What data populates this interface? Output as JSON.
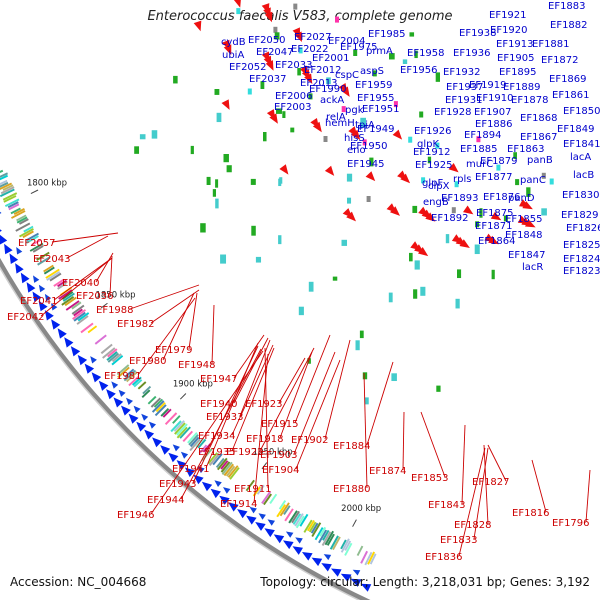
{
  "title": "Enterococcus faecalis V583, complete genome",
  "footer": {
    "accession_label": "Accession:",
    "accession": "NC_004668",
    "topology_label": "Topology:",
    "topology": "circular",
    "length_label": "Length:",
    "length": "3,218,031 bp",
    "genes_label": "Genes:",
    "genes": "3,192"
  },
  "colors": {
    "forward_labels": "#0000cc",
    "reverse_labels": "#cc0000",
    "backbone": "#888888",
    "forward_arrows": "#0022ee",
    "reverse_arrows": "#ee1111"
  },
  "scale_ticks": [
    "2000 kbp",
    "1950 kbp",
    "1900 kbp",
    "1850 kbp",
    "1800 kbp"
  ],
  "forward_genes": [
    "EF1883",
    "EF1882",
    "EF1881",
    "EF1872",
    "EF1869",
    "EF1861",
    "EF1850",
    "EF1849",
    "EF1841",
    "lacA",
    "lacB",
    "EF1830",
    "EF1829",
    "EF1826",
    "EF1825",
    "EF1824",
    "EF1823",
    "lacR",
    "EF1847",
    "EF1848",
    "EF1855",
    "EF1864",
    "EF1871",
    "EF1875",
    "EF1876",
    "panD",
    "panC",
    "panB",
    "EF1863",
    "EF1867",
    "EF1868",
    "EF1878",
    "EF1889",
    "EF1895",
    "EF1905",
    "EF1913",
    "EF1920",
    "EF1921",
    "EF1938",
    "EF1936",
    "EF1932",
    "EF1937",
    "EF1931",
    "EF1928",
    "EF1910",
    "EF1907",
    "EF1919",
    "EF1886",
    "EF1894",
    "EF1885",
    "EF1879",
    "EF1877",
    "murC",
    "rpls",
    "EF1893",
    "EF1892",
    "engB",
    "clpX",
    "glpF",
    "EF1925",
    "EF1912",
    "glpK",
    "EF1926",
    "EF1956",
    "EF1958",
    "EF1985",
    "prmA",
    "aspS",
    "EF1959",
    "EF1955",
    "EF1951",
    "pgk",
    "tpiA",
    "EF1949",
    "EF1950",
    "EF1945",
    "eno",
    "hisS",
    "hemH",
    "relA",
    "ackA",
    "EF1990",
    "EF2001",
    "cspC",
    "EF1975",
    "EF2004",
    "EF2027",
    "EF2022",
    "EF2012",
    "EF2013",
    "EF2006",
    "EF2003",
    "EF2033",
    "EF2037",
    "EF2050",
    "EF2047",
    "EF2052",
    "cydB",
    "ubiA"
  ],
  "reverse_genes": [
    "EF2057",
    "EF2043",
    "EF2040",
    "EF2036",
    "EF2041",
    "EF2042",
    "EF1988",
    "EF1982",
    "EF1979",
    "EF1980",
    "EF1981",
    "EF1948",
    "EF1947",
    "EF1940",
    "EF1933",
    "EF1934",
    "EF1935",
    "EF1923",
    "EF1918",
    "EF1922",
    "EF1915",
    "EF1902",
    "EF1903",
    "EF1904",
    "EF1911",
    "EF1914",
    "EF1941",
    "EF1943",
    "EF1944",
    "EF1946",
    "EF1884",
    "EF1880",
    "EF1874",
    "EF1853",
    "EF1843",
    "EF1827",
    "EF1828",
    "EF1833",
    "EF1836",
    "EF1816",
    "EF1796"
  ]
}
